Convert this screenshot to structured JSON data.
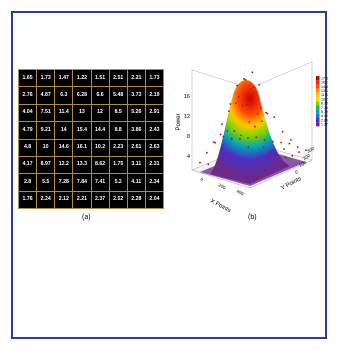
{
  "figure_a": {
    "caption": "(a)",
    "grid": [
      [
        "1.65",
        "1.73",
        "1.47",
        "1.22",
        "1.51",
        "2.51",
        "2.21",
        "1.73"
      ],
      [
        "2.76",
        "4.87",
        "6.3",
        "6.28",
        "6.6",
        "5.48",
        "3.73",
        "2.19"
      ],
      [
        "4.04",
        "7.51",
        "11.4",
        "13",
        "12",
        "8.5",
        "5.26",
        "2.91"
      ],
      [
        "4.79",
        "9.21",
        "14",
        "15.4",
        "14.4",
        "8.8",
        "3.86",
        "2.43"
      ],
      [
        "4.8",
        "10",
        "14.6",
        "16.1",
        "10.2",
        "2.23",
        "2.61",
        "2.63"
      ],
      [
        "4.17",
        "8.97",
        "12.2",
        "13.3",
        "8.62",
        "1.75",
        "3.11",
        "2.31"
      ],
      [
        "2.8",
        "5.5",
        "7.28",
        "7.84",
        "7.41",
        "5.2",
        "4.11",
        "2.34"
      ],
      [
        "1.76",
        "2.24",
        "2.12",
        "2.21",
        "2.37",
        "2.52",
        "2.28",
        "2.04"
      ]
    ]
  },
  "figure_b": {
    "caption": "(b)",
    "zlabel": "Power",
    "xlabel": "X Points",
    "ylabel": "Y Points",
    "zticks": [
      "4",
      "8",
      "12",
      "16"
    ],
    "xticks": [
      "0",
      "200",
      "400"
    ],
    "yticks": [
      "0",
      "100",
      "200",
      "300"
    ],
    "colorbar_labels": [
      "17.5",
      "16.1",
      "14.6",
      "13.1",
      "11.6",
      "10.2",
      "8.73",
      "7.26",
      "5.79",
      "4.32",
      "2.85",
      "1.37"
    ],
    "colorbar_colors": [
      "#cc0000",
      "#e8201a",
      "#ff4a00",
      "#ff8c00",
      "#ffc800",
      "#e0e600",
      "#7fd400",
      "#22b84a",
      "#00a6b8",
      "#1f6fd6",
      "#4a2fc4",
      "#6a2a8a"
    ]
  },
  "chart_data": {
    "type": "heatmap",
    "title": "",
    "xlabel": "X Points",
    "ylabel": "Y Points",
    "zlabel": "Power",
    "values": [
      [
        1.65,
        1.73,
        1.47,
        1.22,
        1.51,
        2.51,
        2.21,
        1.73
      ],
      [
        2.76,
        4.87,
        6.3,
        6.28,
        6.6,
        5.48,
        3.73,
        2.19
      ],
      [
        4.04,
        7.51,
        11.4,
        13,
        12,
        8.5,
        5.26,
        2.91
      ],
      [
        4.79,
        9.21,
        14,
        15.4,
        14.4,
        8.8,
        3.86,
        2.43
      ],
      [
        4.8,
        10,
        14.6,
        16.1,
        10.2,
        2.23,
        2.61,
        2.63
      ],
      [
        4.17,
        8.97,
        12.2,
        13.3,
        8.62,
        1.75,
        3.11,
        2.31
      ],
      [
        2.8,
        5.5,
        7.28,
        7.84,
        7.41,
        5.2,
        4.11,
        2.34
      ],
      [
        1.76,
        2.24,
        2.12,
        2.21,
        2.37,
        2.52,
        2.28,
        2.04
      ]
    ],
    "zlim": [
      0,
      17.5
    ]
  }
}
